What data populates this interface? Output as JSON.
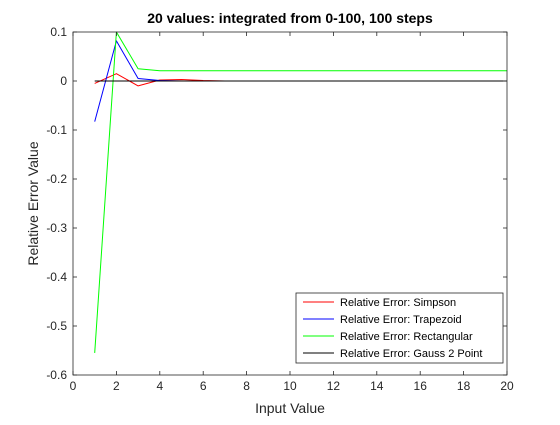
{
  "chart_data": {
    "type": "line",
    "title": "20 values: integrated from 0-100, 100 steps",
    "xlabel": "Input Value",
    "ylabel": "Relative Error Value",
    "xlim": [
      0,
      20
    ],
    "ylim": [
      -0.6,
      0.1
    ],
    "xticks": [
      0,
      2,
      4,
      6,
      8,
      10,
      12,
      14,
      16,
      18,
      20
    ],
    "yticks": [
      -0.6,
      -0.5,
      -0.4,
      -0.3,
      -0.2,
      -0.1,
      0,
      0.1
    ],
    "xtick_labels": [
      "0",
      "2",
      "4",
      "6",
      "8",
      "10",
      "12",
      "14",
      "16",
      "18",
      "20"
    ],
    "ytick_labels": [
      "-0.6",
      "-0.5",
      "-0.4",
      "-0.3",
      "-0.2",
      "-0.1",
      "0",
      "0.1"
    ],
    "grid": false,
    "legend_position": "bottom-right",
    "x": [
      1,
      2,
      3,
      4,
      5,
      6,
      7,
      8,
      9,
      10,
      11,
      12,
      13,
      14,
      15,
      16,
      17,
      18,
      19,
      20
    ],
    "series": [
      {
        "name": "Relative Error: Simpson",
        "color": "#ff0000",
        "values": [
          -0.005,
          0.015,
          -0.01,
          0.002,
          0.003,
          0.001,
          0,
          0,
          0,
          0,
          0,
          0,
          0,
          0,
          0,
          0,
          0,
          0,
          0,
          0
        ]
      },
      {
        "name": "Relative Error: Trapezoid",
        "color": "#0000ff",
        "values": [
          -0.083,
          0.082,
          0.005,
          0.001,
          0,
          0,
          0,
          0,
          0,
          0,
          0,
          0,
          0,
          0,
          0,
          0,
          0,
          0,
          0,
          0
        ]
      },
      {
        "name": "Relative Error: Rectangular",
        "color": "#00ff00",
        "values": [
          -0.555,
          0.1,
          0.025,
          0.021,
          0.021,
          0.021,
          0.021,
          0.021,
          0.021,
          0.021,
          0.021,
          0.021,
          0.021,
          0.021,
          0.021,
          0.021,
          0.021,
          0.021,
          0.021,
          0.021
        ]
      },
      {
        "name": "Relative Error: Gauss 2 Point",
        "color": "#000000",
        "values": [
          0,
          0,
          0,
          0,
          0,
          0,
          0,
          0,
          0,
          0,
          0,
          0,
          0,
          0,
          0,
          0,
          0,
          0,
          0,
          0
        ]
      }
    ]
  }
}
